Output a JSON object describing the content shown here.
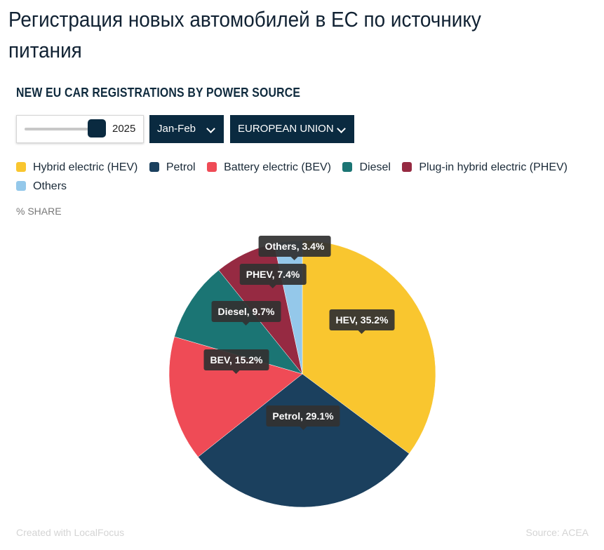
{
  "page": {
    "title": "Регистрация новых автомобилей в ЕС по источнику питания"
  },
  "chart_header": {
    "title": "NEW EU CAR REGISTRATIONS BY POWER SOURCE",
    "axis_label": "% SHARE"
  },
  "controls": {
    "year_slider": {
      "value": "2025"
    },
    "period_dropdown": {
      "selected": "Jan-Feb"
    },
    "region_dropdown": {
      "selected": "EUROPEAN UNION"
    }
  },
  "legend": [
    {
      "label": "Hybrid electric (HEV)",
      "color": "#f9c62f"
    },
    {
      "label": "Petrol",
      "color": "#1b405e"
    },
    {
      "label": "Battery electric (BEV)",
      "color": "#ef4b56"
    },
    {
      "label": "Diesel",
      "color": "#1b7574"
    },
    {
      "label": "Plug-in hybrid electric (PHEV)",
      "color": "#962a42"
    },
    {
      "label": "Others",
      "color": "#94c8ea"
    }
  ],
  "chart_data": {
    "type": "pie",
    "title": "NEW EU CAR REGISTRATIONS BY POWER SOURCE",
    "subtitle": "% SHARE",
    "categories": [
      "Hybrid electric (HEV)",
      "Petrol",
      "Battery electric (BEV)",
      "Diesel",
      "Plug-in hybrid electric (PHEV)",
      "Others"
    ],
    "short_labels": [
      "HEV",
      "Petrol",
      "BEV",
      "Diesel",
      "PHEV",
      "Others"
    ],
    "values": [
      35.2,
      29.1,
      15.2,
      9.7,
      7.4,
      3.4
    ],
    "colors": [
      "#f9c62f",
      "#1b405e",
      "#ef4b56",
      "#1b7574",
      "#962a42",
      "#94c8ea"
    ],
    "data_labels": [
      "HEV, 35.2%",
      "Petrol, 29.1%",
      "BEV, 15.2%",
      "Diesel, 9.7%",
      "PHEV, 7.4%",
      "Others, 3.4%"
    ],
    "start_angle": "12 o'clock, clockwise",
    "legend_position": "top",
    "filters": {
      "year": "2025",
      "period": "Jan-Feb",
      "region": "EUROPEAN UNION"
    }
  },
  "footer": {
    "credit": "Created with LocalFocus",
    "source": "Source:  ACEA"
  }
}
